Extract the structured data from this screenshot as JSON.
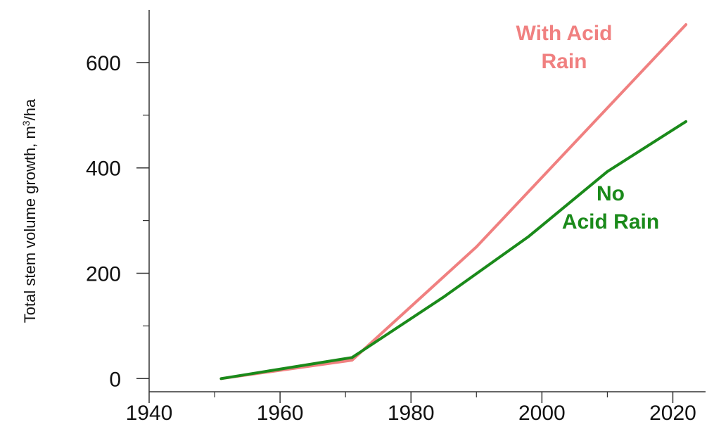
{
  "chart_data": {
    "type": "line",
    "title": "",
    "xlabel": "",
    "ylabel": {
      "before": "Total stem volume growth, m",
      "sup": "3",
      "after": "/ha"
    },
    "xlim": [
      1940,
      2025
    ],
    "ylim": [
      -25,
      700
    ],
    "xticks": [
      1940,
      1960,
      1980,
      2000,
      2020
    ],
    "yticks": [
      0,
      200,
      400,
      600
    ],
    "grid": false,
    "series": [
      {
        "name": "With Acid Rain",
        "color": "#f08080",
        "x": [
          1951,
          1971,
          1990,
          2022
        ],
        "y": [
          0,
          35,
          250,
          672
        ]
      },
      {
        "name": "No Acid Rain",
        "color": "#1a8a1a",
        "x": [
          1951,
          1971,
          1985,
          1998,
          2010,
          2022
        ],
        "y": [
          0,
          40,
          155,
          270,
          393,
          488
        ]
      }
    ],
    "annotations": [
      {
        "series": "With Acid Rain",
        "lines": [
          "With Acid",
          "Rain"
        ],
        "color": "#f08080"
      },
      {
        "series": "No Acid Rain",
        "lines": [
          "No",
          "Acid Rain"
        ],
        "color": "#1a8a1a"
      }
    ]
  }
}
